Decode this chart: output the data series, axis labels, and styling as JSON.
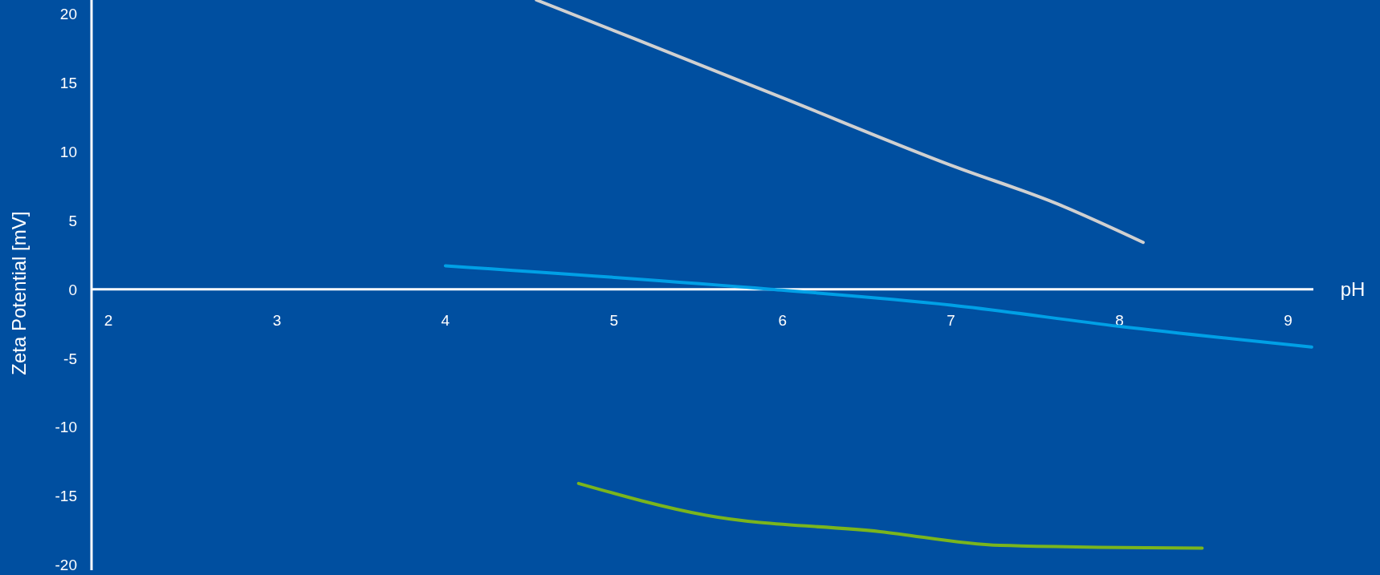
{
  "chart_data": {
    "type": "line",
    "xlabel": "pH",
    "ylabel": "Zeta Potential [mV]",
    "xlim": [
      1.9,
      9.15
    ],
    "ylim": [
      -20.4,
      21
    ],
    "xticks": [
      2,
      3,
      4,
      5,
      6,
      7,
      8,
      9
    ],
    "yticks": [
      -20,
      -15,
      -10,
      -5,
      0,
      5,
      10,
      15,
      20
    ],
    "grid": false,
    "line_style": "solid",
    "series": [
      {
        "color": "#d0d0d0",
        "x": [
          4.54,
          5.12,
          6,
          7,
          7.63,
          8.14
        ],
        "values": [
          21,
          18.2,
          13.9,
          9,
          6.2,
          3.4
        ]
      },
      {
        "color": "#00a0e6",
        "x": [
          4,
          5.93,
          7,
          8,
          9.14
        ],
        "values": [
          1.7,
          0,
          -1.15,
          -2.7,
          -4.2
        ]
      },
      {
        "color": "#7ab51d",
        "x": [
          4.79,
          5.54,
          6.58,
          7.29,
          8.49
        ],
        "values": [
          -14.1,
          -16.4,
          -17.6,
          -18.6,
          -18.8
        ]
      }
    ]
  }
}
